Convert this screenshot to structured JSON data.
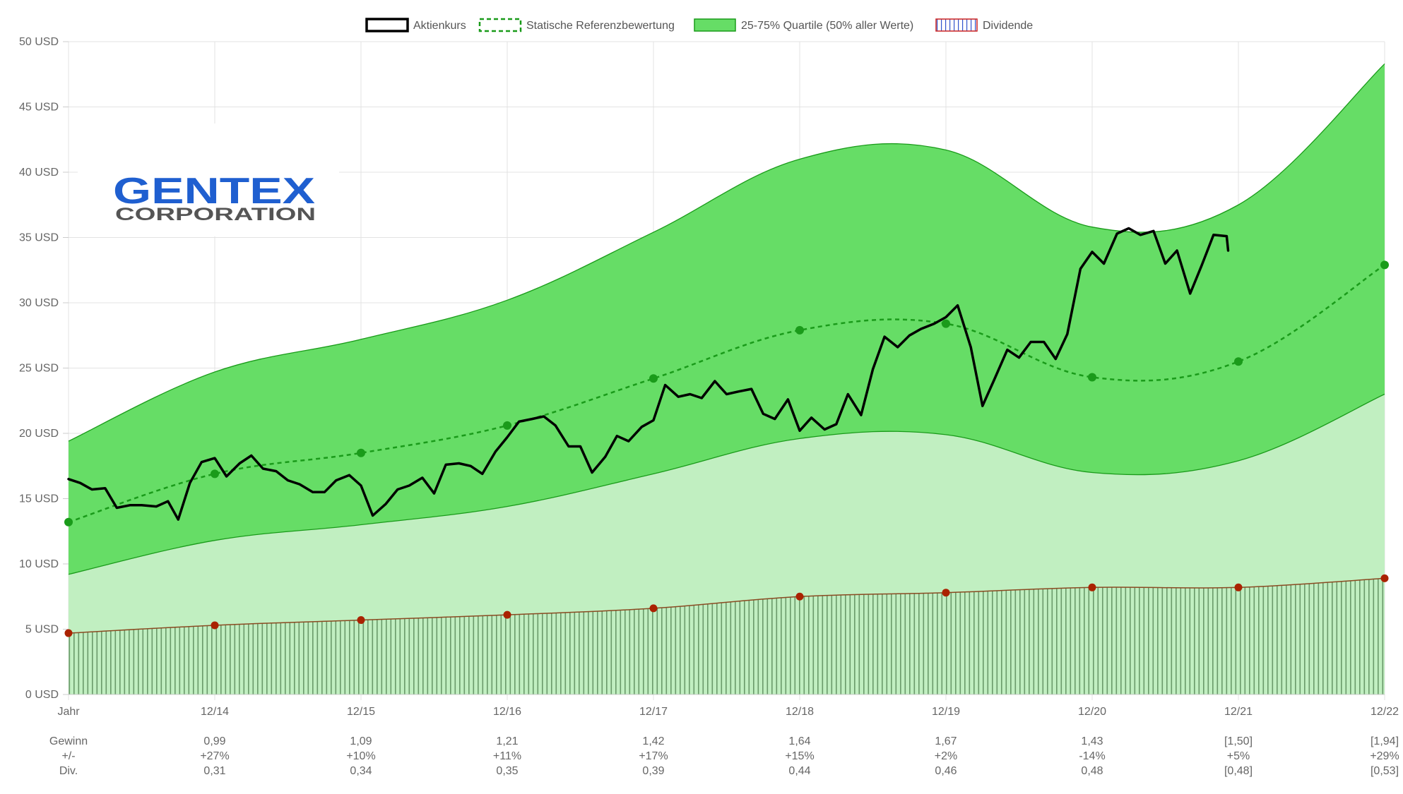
{
  "logo": {
    "line1": "GENTEX",
    "line2": "CORPORATION"
  },
  "legend": {
    "price": "Aktienkurs",
    "reference": "Statische Referenzbewertung",
    "quartile": "25-75% Quartile (50% aller Werte)",
    "dividend": "Dividende"
  },
  "colors": {
    "price": "#000000",
    "reference": "#1a9b1a",
    "quartile_fill": "#66dd66",
    "quartile_stroke": "#1a9b1a",
    "lower_band": "#c1efc1",
    "dividend_marker": "#aa2200",
    "dividend_hatch": "#6a9a6a"
  },
  "chart_data": {
    "type": "area",
    "y_axis": {
      "min": 0,
      "max": 50,
      "step": 5,
      "unit": "USD",
      "tick_labels": [
        "0 USD",
        "5 USD",
        "10 USD",
        "15 USD",
        "20 USD",
        "25 USD",
        "30 USD",
        "35 USD",
        "40 USD",
        "45 USD",
        "50 USD"
      ]
    },
    "x_labels": [
      "Jahr",
      "12/14",
      "12/15",
      "12/16",
      "12/17",
      "12/18",
      "12/19",
      "12/20",
      "12/21",
      "12/22"
    ],
    "grid": true,
    "legend_position": "top",
    "quartile_upper": [
      19.4,
      24.7,
      27.2,
      30.2,
      35.4,
      41.0,
      41.7,
      35.8,
      37.5,
      48.3
    ],
    "quartile_lower": [
      9.2,
      11.8,
      13.0,
      14.4,
      16.9,
      19.6,
      19.9,
      17.0,
      17.9,
      23.0
    ],
    "reference": [
      13.2,
      16.9,
      18.5,
      20.6,
      24.2,
      27.9,
      28.4,
      24.3,
      25.5,
      32.9
    ],
    "dividend": [
      4.7,
      5.3,
      5.7,
      6.1,
      6.6,
      7.5,
      7.8,
      8.2,
      8.2,
      8.9
    ],
    "price": [
      [
        0.0,
        16.5
      ],
      [
        0.08,
        16.2
      ],
      [
        0.16,
        15.7
      ],
      [
        0.25,
        15.8
      ],
      [
        0.33,
        14.3
      ],
      [
        0.42,
        14.5
      ],
      [
        0.5,
        14.5
      ],
      [
        0.6,
        14.4
      ],
      [
        0.68,
        14.8
      ],
      [
        0.75,
        13.4
      ],
      [
        0.83,
        16.2
      ],
      [
        0.91,
        17.8
      ],
      [
        1.0,
        18.1
      ],
      [
        1.08,
        16.7
      ],
      [
        1.17,
        17.7
      ],
      [
        1.25,
        18.3
      ],
      [
        1.33,
        17.3
      ],
      [
        1.42,
        17.1
      ],
      [
        1.5,
        16.4
      ],
      [
        1.58,
        16.1
      ],
      [
        1.67,
        15.5
      ],
      [
        1.75,
        15.5
      ],
      [
        1.83,
        16.4
      ],
      [
        1.92,
        16.8
      ],
      [
        2.0,
        16.0
      ],
      [
        2.08,
        13.7
      ],
      [
        2.17,
        14.6
      ],
      [
        2.25,
        15.7
      ],
      [
        2.33,
        16.0
      ],
      [
        2.42,
        16.6
      ],
      [
        2.5,
        15.4
      ],
      [
        2.58,
        17.6
      ],
      [
        2.67,
        17.7
      ],
      [
        2.75,
        17.5
      ],
      [
        2.83,
        16.9
      ],
      [
        2.92,
        18.6
      ],
      [
        3.0,
        19.7
      ],
      [
        3.08,
        20.9
      ],
      [
        3.17,
        21.1
      ],
      [
        3.25,
        21.3
      ],
      [
        3.33,
        20.6
      ],
      [
        3.42,
        19.0
      ],
      [
        3.5,
        19.0
      ],
      [
        3.58,
        17.0
      ],
      [
        3.67,
        18.2
      ],
      [
        3.75,
        19.8
      ],
      [
        3.83,
        19.4
      ],
      [
        3.92,
        20.5
      ],
      [
        4.0,
        21.0
      ],
      [
        4.08,
        23.7
      ],
      [
        4.17,
        22.8
      ],
      [
        4.25,
        23.0
      ],
      [
        4.33,
        22.7
      ],
      [
        4.42,
        24.0
      ],
      [
        4.5,
        23.0
      ],
      [
        4.58,
        23.2
      ],
      [
        4.67,
        23.4
      ],
      [
        4.75,
        21.5
      ],
      [
        4.83,
        21.1
      ],
      [
        4.92,
        22.6
      ],
      [
        5.0,
        20.2
      ],
      [
        5.08,
        21.2
      ],
      [
        5.17,
        20.3
      ],
      [
        5.25,
        20.7
      ],
      [
        5.33,
        23.0
      ],
      [
        5.42,
        21.4
      ],
      [
        5.5,
        24.9
      ],
      [
        5.58,
        27.4
      ],
      [
        5.67,
        26.6
      ],
      [
        5.75,
        27.5
      ],
      [
        5.83,
        28.0
      ],
      [
        5.92,
        28.4
      ],
      [
        6.0,
        28.9
      ],
      [
        6.08,
        29.8
      ],
      [
        6.17,
        26.6
      ],
      [
        6.25,
        22.1
      ],
      [
        6.33,
        24.1
      ],
      [
        6.42,
        26.4
      ],
      [
        6.5,
        25.8
      ],
      [
        6.58,
        27.0
      ],
      [
        6.67,
        27.0
      ],
      [
        6.75,
        25.7
      ],
      [
        6.83,
        27.6
      ],
      [
        6.92,
        32.6
      ],
      [
        7.0,
        33.9
      ],
      [
        7.08,
        33.0
      ],
      [
        7.17,
        35.3
      ],
      [
        7.25,
        35.7
      ],
      [
        7.33,
        35.2
      ],
      [
        7.42,
        35.5
      ],
      [
        7.5,
        33.0
      ],
      [
        7.58,
        34.0
      ],
      [
        7.67,
        30.7
      ],
      [
        7.75,
        32.9
      ],
      [
        7.83,
        35.2
      ],
      [
        7.92,
        35.1
      ],
      [
        7.93,
        34.0
      ]
    ],
    "stats": {
      "labels": [
        "Gewinn",
        "+/-",
        "Div."
      ],
      "columns": [
        {
          "gewinn": "0,99",
          "change": "+27%",
          "div": "0,31"
        },
        {
          "gewinn": "1,09",
          "change": "+10%",
          "div": "0,34"
        },
        {
          "gewinn": "1,21",
          "change": "+11%",
          "div": "0,35"
        },
        {
          "gewinn": "1,42",
          "change": "+17%",
          "div": "0,39"
        },
        {
          "gewinn": "1,64",
          "change": "+15%",
          "div": "0,44"
        },
        {
          "gewinn": "1,67",
          "change": "+2%",
          "div": "0,46"
        },
        {
          "gewinn": "1,43",
          "change": "-14%",
          "div": "0,48"
        },
        {
          "gewinn": "[1,50]",
          "change": "+5%",
          "div": "[0,48]"
        },
        {
          "gewinn": "[1,94]",
          "change": "+29%",
          "div": "[0,53]"
        }
      ]
    }
  }
}
